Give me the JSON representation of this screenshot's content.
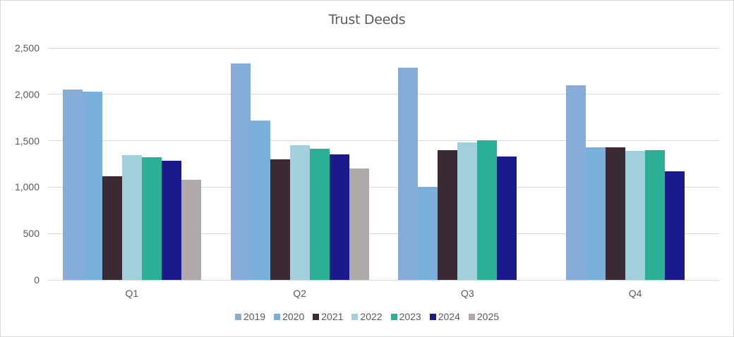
{
  "chart_data": {
    "type": "bar",
    "title": "Trust Deeds",
    "xlabel": "",
    "ylabel": "",
    "ylim": [
      0,
      2500
    ],
    "yticks": [
      "0",
      "500",
      "1,000",
      "1,500",
      "2,000",
      "2,500"
    ],
    "grid": true,
    "legend_position": "bottom",
    "categories": [
      "Q1",
      "Q2",
      "Q3",
      "Q4"
    ],
    "series": [
      {
        "name": "2019",
        "color": "#86ACD8",
        "values": [
          2049,
          2331,
          2285,
          2095
        ]
      },
      {
        "name": "2020",
        "color": "#7AAFDC",
        "values": [
          2027,
          1720,
          1000,
          1429
        ]
      },
      {
        "name": "2021",
        "color": "#3B2A33",
        "values": [
          1115,
          1299,
          1396,
          1429
        ]
      },
      {
        "name": "2022",
        "color": "#A1D0DC",
        "values": [
          1343,
          1451,
          1479,
          1391
        ]
      },
      {
        "name": "2023",
        "color": "#2BB095",
        "values": [
          1322,
          1411,
          1502,
          1396
        ]
      },
      {
        "name": "2024",
        "color": "#1A1A8C",
        "values": [
          1284,
          1350,
          1330,
          1168
        ]
      },
      {
        "name": "2025",
        "color": "#AFA9A9",
        "values": [
          1079,
          1198,
          null,
          null
        ]
      }
    ]
  }
}
